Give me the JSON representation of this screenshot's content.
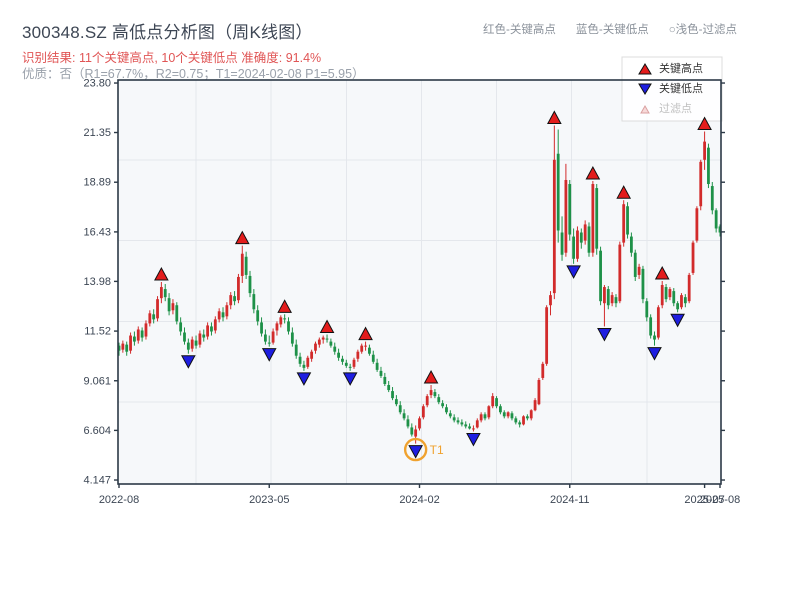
{
  "header": {
    "title": "300348.SZ 高低点分析图（周K线图）",
    "result_line": "识别结果: 11个关键高点, 10个关键低点  准确度: 91.4%",
    "quality_line": "优质：否（R1=67.7%，R2=0.75；T1=2024-02-08 P1=5.95）",
    "inline_legend": [
      {
        "label": "红色-关键高点"
      },
      {
        "label": "蓝色-关键低点"
      },
      {
        "label": "○浅色-过滤点"
      }
    ]
  },
  "legend_box": {
    "items": [
      {
        "label": "关键高点",
        "icon": "red-up-triangle",
        "muted": false
      },
      {
        "label": "关键低点",
        "icon": "blue-down-triangle",
        "muted": false
      },
      {
        "label": "过滤点",
        "icon": "filtered-point-triangle",
        "muted": true
      }
    ]
  },
  "colors": {
    "candle_up": "#d22b2b",
    "candle_down": "#1e9148",
    "key_high_marker": "#e31c1c",
    "key_low_marker": "#1e1ee0",
    "marker_edge": "#111111",
    "filtered_fill": "#f7d9d9",
    "filtered_edge": "#d9a0a0",
    "t1_ring": "#f0a22e",
    "grid": "#e4e7ec",
    "plot_bg": "#f6f8fa",
    "spine": "#2c3947",
    "tick_text": "#3c4654",
    "legend_text": "#333333",
    "legend_muted_text": "#bfbfbf"
  },
  "chart_data": {
    "type": "candlestick",
    "title": "300348.SZ 高低点分析图（周K线图）",
    "period": "weekly",
    "start_week_label": "2022-08",
    "end_week_label": "2025-08",
    "ylim": [
      3.95,
      23.95
    ],
    "grid": true,
    "legend_position": "top-right",
    "y_ticks": [
      {
        "v": 23.8,
        "label": "23.80"
      },
      {
        "v": 21.35,
        "label": "21.35"
      },
      {
        "v": 18.89,
        "label": "18.89"
      },
      {
        "v": 16.43,
        "label": "16.43"
      },
      {
        "v": 13.98,
        "label": "13.98"
      },
      {
        "v": 11.52,
        "label": "11.52"
      },
      {
        "v": 9.061,
        "label": "9.061"
      },
      {
        "v": 6.604,
        "label": "6.604"
      },
      {
        "v": 4.147,
        "label": "4.147"
      }
    ],
    "x_ticks": [
      {
        "week": 0,
        "label": "2022-08"
      },
      {
        "week": 39,
        "label": "2023-05"
      },
      {
        "week": 78,
        "label": "2024-02"
      },
      {
        "week": 117,
        "label": "2024-11"
      },
      {
        "week": 152,
        "label": "2025-07"
      },
      {
        "week": 156,
        "label": "2025-08"
      }
    ],
    "h_gridline_values": [
      8,
      12,
      16,
      20
    ],
    "v_gridline_weeks": [
      20,
      39.5,
      59,
      78.5,
      98,
      117.5,
      137
    ],
    "candles": [
      [
        10.8,
        10.95,
        10.3,
        10.55
      ],
      [
        10.6,
        11.05,
        10.45,
        10.9
      ],
      [
        10.85,
        11.0,
        10.3,
        10.5
      ],
      [
        10.55,
        11.45,
        10.4,
        11.3
      ],
      [
        11.25,
        11.5,
        10.8,
        11.0
      ],
      [
        11.05,
        11.75,
        10.9,
        11.6
      ],
      [
        11.55,
        11.7,
        11.0,
        11.2
      ],
      [
        11.25,
        12.05,
        11.1,
        11.9
      ],
      [
        11.9,
        12.55,
        11.75,
        12.4
      ],
      [
        12.35,
        12.6,
        11.9,
        12.1
      ],
      [
        12.15,
        13.25,
        12.0,
        13.1
      ],
      [
        13.15,
        13.95,
        12.9,
        13.7
      ],
      [
        13.6,
        13.85,
        13.0,
        13.2
      ],
      [
        13.15,
        13.4,
        12.3,
        12.5
      ],
      [
        12.55,
        13.1,
        12.35,
        12.9
      ],
      [
        12.8,
        12.95,
        11.85,
        12.0
      ],
      [
        11.95,
        12.2,
        11.3,
        11.5
      ],
      [
        11.45,
        11.7,
        10.85,
        11.0
      ],
      [
        10.95,
        11.15,
        10.4,
        10.6
      ],
      [
        10.65,
        11.25,
        10.5,
        11.1
      ],
      [
        11.05,
        11.3,
        10.65,
        10.8
      ],
      [
        10.85,
        11.55,
        10.7,
        11.4
      ],
      [
        11.35,
        11.6,
        11.0,
        11.2
      ],
      [
        11.25,
        11.95,
        11.1,
        11.8
      ],
      [
        11.75,
        11.95,
        11.3,
        11.5
      ],
      [
        11.55,
        12.25,
        11.4,
        12.1
      ],
      [
        12.1,
        12.65,
        11.95,
        12.5
      ],
      [
        12.45,
        12.7,
        12.0,
        12.2
      ],
      [
        12.25,
        12.95,
        12.1,
        12.8
      ],
      [
        12.8,
        13.45,
        12.6,
        13.3
      ],
      [
        13.25,
        13.5,
        12.8,
        13.0
      ],
      [
        13.05,
        14.35,
        12.9,
        14.2
      ],
      [
        14.25,
        15.75,
        13.9,
        15.35
      ],
      [
        15.2,
        15.45,
        14.1,
        14.3
      ],
      [
        14.25,
        14.5,
        13.2,
        13.4
      ],
      [
        13.35,
        13.6,
        12.4,
        12.6
      ],
      [
        12.55,
        12.8,
        11.8,
        12.0
      ],
      [
        11.95,
        12.2,
        11.25,
        11.4
      ],
      [
        11.35,
        11.6,
        10.85,
        11.0
      ],
      [
        10.95,
        11.3,
        10.75,
        10.9
      ],
      [
        10.95,
        11.65,
        10.85,
        11.5
      ],
      [
        11.55,
        12.0,
        11.3,
        11.9
      ],
      [
        11.85,
        12.3,
        11.7,
        12.2
      ],
      [
        12.15,
        12.35,
        11.9,
        12.1
      ],
      [
        12.0,
        12.2,
        11.35,
        11.5
      ],
      [
        11.45,
        11.7,
        10.75,
        10.9
      ],
      [
        10.85,
        11.1,
        10.15,
        10.3
      ],
      [
        10.25,
        10.45,
        9.75,
        9.9
      ],
      [
        9.85,
        10.05,
        9.55,
        9.7
      ],
      [
        9.75,
        10.3,
        9.65,
        10.2
      ],
      [
        10.15,
        10.6,
        10.0,
        10.5
      ],
      [
        10.55,
        11.0,
        10.4,
        10.9
      ],
      [
        10.85,
        11.2,
        10.7,
        11.1
      ],
      [
        11.1,
        11.3,
        10.9,
        11.2
      ],
      [
        11.15,
        11.35,
        10.95,
        11.1
      ],
      [
        11.0,
        11.15,
        10.7,
        10.8
      ],
      [
        10.75,
        10.95,
        10.35,
        10.5
      ],
      [
        10.45,
        10.65,
        10.05,
        10.2
      ],
      [
        10.15,
        10.3,
        9.85,
        10.0
      ],
      [
        9.95,
        10.1,
        9.7,
        9.8
      ],
      [
        9.75,
        9.9,
        9.55,
        9.7
      ],
      [
        9.75,
        10.2,
        9.65,
        10.1
      ],
      [
        10.15,
        10.6,
        10.0,
        10.5
      ],
      [
        10.5,
        10.9,
        10.4,
        10.8
      ],
      [
        10.75,
        11.0,
        10.55,
        10.8
      ],
      [
        10.7,
        10.85,
        10.3,
        10.4
      ],
      [
        10.35,
        10.55,
        9.9,
        10.0
      ],
      [
        9.95,
        10.15,
        9.5,
        9.6
      ],
      [
        9.55,
        9.75,
        9.2,
        9.3
      ],
      [
        9.25,
        9.45,
        8.8,
        8.9
      ],
      [
        8.85,
        9.05,
        8.5,
        8.6
      ],
      [
        8.55,
        8.75,
        8.1,
        8.2
      ],
      [
        8.15,
        8.35,
        7.8,
        7.9
      ],
      [
        7.85,
        8.05,
        7.4,
        7.5
      ],
      [
        7.45,
        7.65,
        7.1,
        7.2
      ],
      [
        7.15,
        7.35,
        6.7,
        6.8
      ],
      [
        6.75,
        6.95,
        6.3,
        6.4
      ],
      [
        6.3,
        6.85,
        5.95,
        6.65
      ],
      [
        6.7,
        7.3,
        6.6,
        7.2
      ],
      [
        7.25,
        7.9,
        7.15,
        7.8
      ],
      [
        7.85,
        8.4,
        7.75,
        8.3
      ],
      [
        8.35,
        8.85,
        8.2,
        8.6
      ],
      [
        8.5,
        8.65,
        8.2,
        8.3
      ],
      [
        8.25,
        8.4,
        7.9,
        8.0
      ],
      [
        7.95,
        8.1,
        7.7,
        7.8
      ],
      [
        7.75,
        7.9,
        7.4,
        7.5
      ],
      [
        7.45,
        7.6,
        7.2,
        7.3
      ],
      [
        7.25,
        7.4,
        7.0,
        7.1
      ],
      [
        7.1,
        7.25,
        6.9,
        7.0
      ],
      [
        7.0,
        7.15,
        6.8,
        6.9
      ],
      [
        6.9,
        7.05,
        6.7,
        6.8
      ],
      [
        6.8,
        6.95,
        6.65,
        6.7
      ],
      [
        6.7,
        6.85,
        6.55,
        6.7
      ],
      [
        6.75,
        7.2,
        6.7,
        7.1
      ],
      [
        7.1,
        7.5,
        7.0,
        7.4
      ],
      [
        7.4,
        7.5,
        7.1,
        7.2
      ],
      [
        7.25,
        7.85,
        7.15,
        7.8
      ],
      [
        7.8,
        8.45,
        7.7,
        8.3
      ],
      [
        8.2,
        8.3,
        7.7,
        7.8
      ],
      [
        7.8,
        7.9,
        7.4,
        7.5
      ],
      [
        7.5,
        7.6,
        7.2,
        7.3
      ],
      [
        7.3,
        7.55,
        7.2,
        7.5
      ],
      [
        7.45,
        7.55,
        7.1,
        7.2
      ],
      [
        7.2,
        7.3,
        6.9,
        7.0
      ],
      [
        7.0,
        7.1,
        6.75,
        6.9
      ],
      [
        6.9,
        7.35,
        6.85,
        7.3
      ],
      [
        7.3,
        7.4,
        7.1,
        7.2
      ],
      [
        7.2,
        7.65,
        7.1,
        7.6
      ],
      [
        7.6,
        8.2,
        7.55,
        8.1
      ],
      [
        7.9,
        9.2,
        7.85,
        9.1
      ],
      [
        9.2,
        10.0,
        9.1,
        9.9
      ],
      [
        9.9,
        12.8,
        9.8,
        12.7
      ],
      [
        12.8,
        13.5,
        12.3,
        13.3
      ],
      [
        13.4,
        21.7,
        13.1,
        20.0
      ],
      [
        20.3,
        21.5,
        15.9,
        16.5
      ],
      [
        16.4,
        17.2,
        15.0,
        15.3
      ],
      [
        15.4,
        19.8,
        15.2,
        19.0
      ],
      [
        18.8,
        19.0,
        16.0,
        16.3
      ],
      [
        16.2,
        16.6,
        14.85,
        15.1
      ],
      [
        15.1,
        16.7,
        14.95,
        16.5
      ],
      [
        16.4,
        16.6,
        15.6,
        15.9
      ],
      [
        16.0,
        17.0,
        15.8,
        16.8
      ],
      [
        16.7,
        16.9,
        15.2,
        15.4
      ],
      [
        15.4,
        18.95,
        15.2,
        18.8
      ],
      [
        18.6,
        18.8,
        15.3,
        15.6
      ],
      [
        15.5,
        15.7,
        12.8,
        13.0
      ],
      [
        12.9,
        13.8,
        11.75,
        13.7
      ],
      [
        13.6,
        13.75,
        12.6,
        12.8
      ],
      [
        12.9,
        13.45,
        12.75,
        13.3
      ],
      [
        13.2,
        13.35,
        12.7,
        12.9
      ],
      [
        13.0,
        15.95,
        12.9,
        15.8
      ],
      [
        15.9,
        18.0,
        15.7,
        17.8
      ],
      [
        17.7,
        17.9,
        16.1,
        16.3
      ],
      [
        16.2,
        16.4,
        15.2,
        15.4
      ],
      [
        15.4,
        15.55,
        14.0,
        14.2
      ],
      [
        14.3,
        14.85,
        14.1,
        14.7
      ],
      [
        14.6,
        14.75,
        12.9,
        13.1
      ],
      [
        13.0,
        13.15,
        12.0,
        12.2
      ],
      [
        12.2,
        12.35,
        11.15,
        11.3
      ],
      [
        11.3,
        11.5,
        10.8,
        11.1
      ],
      [
        11.2,
        12.8,
        11.1,
        12.7
      ],
      [
        12.8,
        14.0,
        12.65,
        13.8
      ],
      [
        13.7,
        13.85,
        12.95,
        13.1
      ],
      [
        13.2,
        13.7,
        13.05,
        13.6
      ],
      [
        13.5,
        13.65,
        12.75,
        12.9
      ],
      [
        12.9,
        13.0,
        12.45,
        12.6
      ],
      [
        12.7,
        13.4,
        12.6,
        13.3
      ],
      [
        13.2,
        13.35,
        12.7,
        12.9
      ],
      [
        13.0,
        14.4,
        12.9,
        14.3
      ],
      [
        14.4,
        16.0,
        14.3,
        15.9
      ],
      [
        16.0,
        17.7,
        15.9,
        17.6
      ],
      [
        17.7,
        20.0,
        17.5,
        19.9
      ],
      [
        20.0,
        21.4,
        19.5,
        20.9
      ],
      [
        20.6,
        20.8,
        18.6,
        18.8
      ],
      [
        18.7,
        18.9,
        17.3,
        17.5
      ],
      [
        17.5,
        17.6,
        16.4,
        16.6
      ],
      [
        16.7,
        16.8,
        16.2,
        16.4
      ]
    ],
    "key_high_weeks": [
      11,
      32,
      43,
      54,
      64,
      81,
      113,
      123,
      131,
      141,
      152
    ],
    "key_low_weeks": [
      18,
      39,
      48,
      60,
      77,
      92,
      118,
      126,
      139,
      145
    ],
    "t1_marker": {
      "week": 77,
      "label": "T1",
      "price": 5.95
    }
  }
}
